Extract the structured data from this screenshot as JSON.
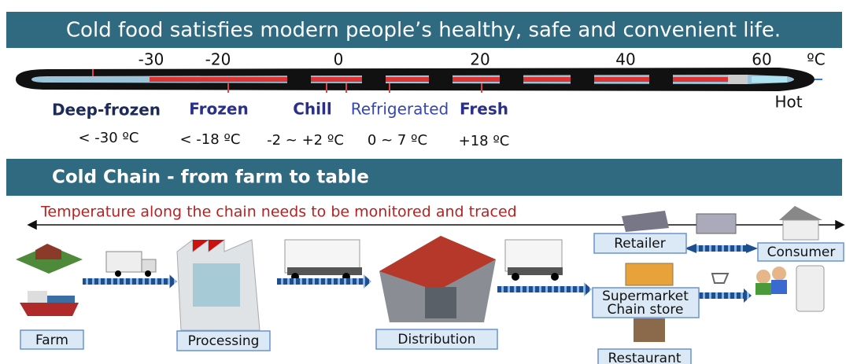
{
  "title": "Cold food satisfies modern people’s healthy, safe and convenient life.",
  "scale": {
    "ticks": [
      -30,
      -20,
      0,
      20,
      40,
      60
    ],
    "unit": "ºC"
  },
  "zones": [
    {
      "name": "Deep-frozen",
      "range": "< -30 ºC"
    },
    {
      "name": "Frozen",
      "range": "< -18 ºC"
    },
    {
      "name": "Chill",
      "range": "-2 ~ +2 ºC"
    },
    {
      "name": "Refrigerated",
      "range": "0 ~ 7 ºC"
    },
    {
      "name": "Fresh",
      "range": "+18 ºC"
    },
    {
      "name": "Hot"
    }
  ],
  "chain": {
    "title": "Cold Chain  - from farm to  table",
    "note": "Temperature along the chain needs to be monitored and traced",
    "stages": [
      "Farm",
      "Processing",
      "Distribution",
      "Retailer",
      "Consumer",
      "Supermarket",
      "Chain store",
      "Restaurant"
    ]
  }
}
